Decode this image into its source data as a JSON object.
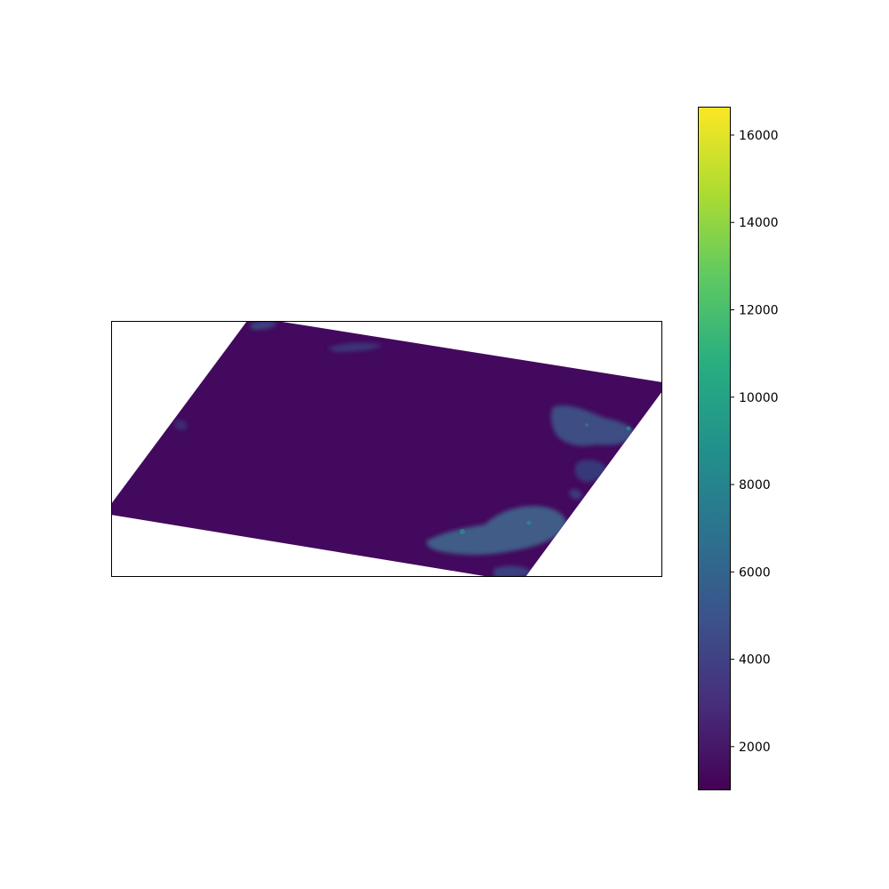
{
  "figure": {
    "background": "#ffffff",
    "panel_frame_color": "#000000"
  },
  "raster": {
    "colormap": "viridis",
    "base_color": "#45085f",
    "highlight_color": "#3d6f8a",
    "outside_color": "#ffffff"
  },
  "colorbar": {
    "min": 1000,
    "max": 16650,
    "colormap": "viridis",
    "ticks": [
      {
        "value": 2000,
        "label": "2000"
      },
      {
        "value": 4000,
        "label": "4000"
      },
      {
        "value": 6000,
        "label": "6000"
      },
      {
        "value": 8000,
        "label": "8000"
      },
      {
        "value": 10000,
        "label": "10000"
      },
      {
        "value": 12000,
        "label": "12000"
      },
      {
        "value": 14000,
        "label": "14000"
      },
      {
        "value": 16000,
        "label": "16000"
      }
    ]
  }
}
